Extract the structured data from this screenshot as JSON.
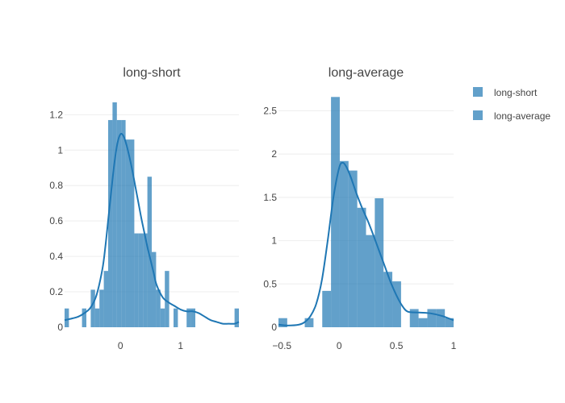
{
  "colors": {
    "bar": "#1f77b4",
    "curve": "#1f77b4",
    "grid": "#eeeeee",
    "axis_text": "#444444",
    "title_text": "#444444"
  },
  "legend": [
    {
      "name": "long-short"
    },
    {
      "name": "long-average"
    }
  ],
  "chart_data": [
    {
      "type": "bar",
      "title": "long-short",
      "xlim": [
        -0.93,
        1.97
      ],
      "ylim": [
        0,
        1.32
      ],
      "xticks": [
        0,
        1
      ],
      "xtick_labels": [
        "0",
        "1"
      ],
      "yticks": [
        0,
        0.2,
        0.4,
        0.6,
        0.8,
        1,
        1.2
      ],
      "ytick_labels": [
        "0",
        "0.2",
        "0.4",
        "0.6",
        "0.8",
        "1",
        "1.2"
      ],
      "grid": true,
      "bin_width": 0.0725,
      "bins": [
        {
          "x0": -0.93,
          "y": 0.106
        },
        {
          "x0": -0.8575,
          "y": 0
        },
        {
          "x0": -0.785,
          "y": 0
        },
        {
          "x0": -0.7125,
          "y": 0
        },
        {
          "x0": -0.64,
          "y": 0.106
        },
        {
          "x0": -0.5675,
          "y": 0
        },
        {
          "x0": -0.495,
          "y": 0.212
        },
        {
          "x0": -0.4225,
          "y": 0.106
        },
        {
          "x0": -0.35,
          "y": 0.212
        },
        {
          "x0": -0.2775,
          "y": 0.318
        },
        {
          "x0": -0.205,
          "y": 1.17
        },
        {
          "x0": -0.1325,
          "y": 1.27
        },
        {
          "x0": -0.06,
          "y": 1.17
        },
        {
          "x0": 0.0125,
          "y": 1.17
        },
        {
          "x0": 0.085,
          "y": 1.06
        },
        {
          "x0": 0.1575,
          "y": 1.06
        },
        {
          "x0": 0.23,
          "y": 0.53
        },
        {
          "x0": 0.3025,
          "y": 0.53
        },
        {
          "x0": 0.375,
          "y": 0.53
        },
        {
          "x0": 0.4475,
          "y": 0.85
        },
        {
          "x0": 0.52,
          "y": 0.425
        },
        {
          "x0": 0.5925,
          "y": 0.212
        },
        {
          "x0": 0.665,
          "y": 0.106
        },
        {
          "x0": 0.7375,
          "y": 0.318
        },
        {
          "x0": 0.81,
          "y": 0
        },
        {
          "x0": 0.8825,
          "y": 0.106
        },
        {
          "x0": 0.955,
          "y": 0
        },
        {
          "x0": 1.0275,
          "y": 0
        },
        {
          "x0": 1.1,
          "y": 0.106
        },
        {
          "x0": 1.1725,
          "y": 0.106
        },
        {
          "x0": 1.245,
          "y": 0
        },
        {
          "x0": 1.3175,
          "y": 0
        },
        {
          "x0": 1.39,
          "y": 0
        },
        {
          "x0": 1.4625,
          "y": 0
        },
        {
          "x0": 1.535,
          "y": 0
        },
        {
          "x0": 1.6075,
          "y": 0
        },
        {
          "x0": 1.68,
          "y": 0
        },
        {
          "x0": 1.7525,
          "y": 0
        },
        {
          "x0": 1.825,
          "y": 0
        },
        {
          "x0": 1.8975,
          "y": 0.106
        }
      ],
      "curve": {
        "x": [
          -0.93,
          -0.8,
          -0.7,
          -0.6,
          -0.5,
          -0.4,
          -0.3,
          -0.25,
          -0.2,
          -0.15,
          -0.1,
          -0.05,
          0,
          0.05,
          0.1,
          0.15,
          0.2,
          0.25,
          0.3,
          0.35,
          0.4,
          0.45,
          0.5,
          0.55,
          0.6,
          0.7,
          0.8,
          0.9,
          1.0,
          1.1,
          1.2,
          1.3,
          1.4,
          1.5,
          1.6,
          1.7,
          1.8,
          1.9,
          1.97
        ],
        "y": [
          0.04,
          0.05,
          0.06,
          0.08,
          0.11,
          0.18,
          0.33,
          0.46,
          0.62,
          0.78,
          0.93,
          1.04,
          1.09,
          1.08,
          1.03,
          0.96,
          0.88,
          0.79,
          0.7,
          0.61,
          0.53,
          0.45,
          0.38,
          0.31,
          0.24,
          0.17,
          0.14,
          0.12,
          0.1,
          0.09,
          0.09,
          0.08,
          0.06,
          0.04,
          0.03,
          0.02,
          0.02,
          0.02,
          0.03
        ]
      }
    },
    {
      "type": "bar",
      "title": "long-average",
      "xlim": [
        -0.53,
        1.0
      ],
      "ylim": [
        0,
        2.7
      ],
      "xticks": [
        -0.5,
        0,
        0.5,
        1
      ],
      "xtick_labels": [
        "−0.5",
        "0",
        "0.5",
        "1"
      ],
      "yticks": [
        0,
        0.5,
        1,
        1.5,
        2,
        2.5
      ],
      "ytick_labels": [
        "0",
        "0.5",
        "1",
        "1.5",
        "2",
        "2.5"
      ],
      "grid": true,
      "bin_width": 0.0765,
      "bins": [
        {
          "x0": -0.53,
          "y": 0.105
        },
        {
          "x0": -0.4535,
          "y": 0
        },
        {
          "x0": -0.377,
          "y": 0
        },
        {
          "x0": -0.3005,
          "y": 0.105
        },
        {
          "x0": -0.224,
          "y": 0
        },
        {
          "x0": -0.1475,
          "y": 0.42
        },
        {
          "x0": -0.071,
          "y": 2.66
        },
        {
          "x0": 0.0055,
          "y": 1.92
        },
        {
          "x0": 0.082,
          "y": 1.81
        },
        {
          "x0": 0.1585,
          "y": 1.38
        },
        {
          "x0": 0.235,
          "y": 1.065
        },
        {
          "x0": 0.3115,
          "y": 1.49
        },
        {
          "x0": 0.388,
          "y": 0.64
        },
        {
          "x0": 0.4645,
          "y": 0.53
        },
        {
          "x0": 0.541,
          "y": 0
        },
        {
          "x0": 0.6175,
          "y": 0.21
        },
        {
          "x0": 0.694,
          "y": 0.105
        },
        {
          "x0": 0.7705,
          "y": 0.21
        },
        {
          "x0": 0.847,
          "y": 0.21
        },
        {
          "x0": 0.9235,
          "y": 0.105
        }
      ],
      "curve": {
        "x": [
          -0.53,
          -0.45,
          -0.35,
          -0.3,
          -0.25,
          -0.2,
          -0.15,
          -0.1,
          -0.05,
          0,
          0.03,
          0.06,
          0.1,
          0.15,
          0.2,
          0.25,
          0.3,
          0.35,
          0.4,
          0.45,
          0.5,
          0.55,
          0.6,
          0.7,
          0.8,
          0.9,
          1.0
        ],
        "y": [
          0.03,
          0.02,
          0.03,
          0.06,
          0.13,
          0.27,
          0.55,
          1.0,
          1.5,
          1.84,
          1.9,
          1.86,
          1.74,
          1.55,
          1.38,
          1.23,
          1.06,
          0.88,
          0.7,
          0.52,
          0.37,
          0.25,
          0.18,
          0.17,
          0.16,
          0.13,
          0.08
        ]
      }
    }
  ]
}
